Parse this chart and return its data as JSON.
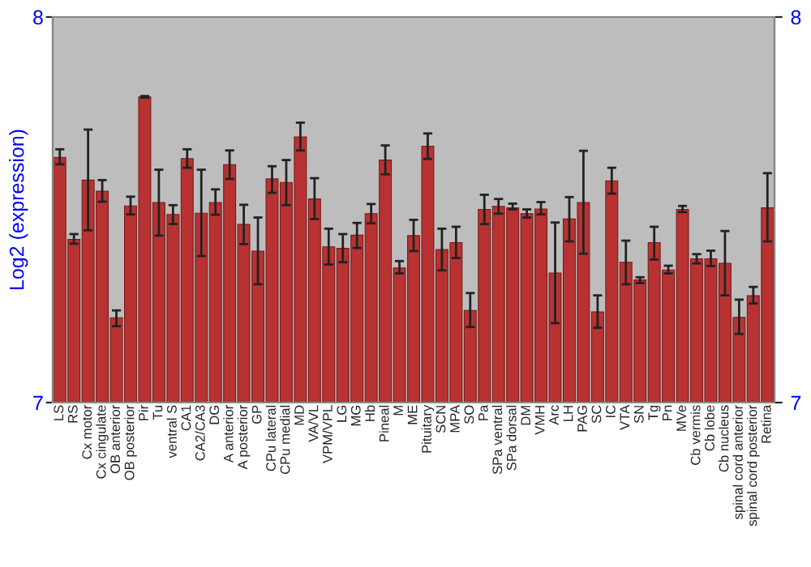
{
  "chart_data": {
    "type": "bar",
    "ylabel": "Log2 (expression)",
    "color": "#b83232",
    "categories": [
      "LS",
      "RS",
      "Cx motor",
      "Cx cingulate",
      "OB anterior",
      "OB posterior",
      "Pir",
      "Tu",
      "ventral S",
      "CA1",
      "CA2/CA3",
      "DG",
      "A anterior",
      "A posterior",
      "GP",
      "CPu lateral",
      "CPu medial",
      "MD",
      "VA/VL",
      "VPM/VPL",
      "LG",
      "MG",
      "Hb",
      "Pineal",
      "M",
      "ME",
      "Pituitary",
      "SCN",
      "MPA",
      "SO",
      "Pa",
      "SPa ventral",
      "SPa dorsal",
      "DM",
      "VMH",
      "Arc",
      "LH",
      "PAG",
      "SC",
      "IC",
      "VTA",
      "SN",
      "Tg",
      "Pn",
      "MVe",
      "Cb vermis",
      "Cb lobe",
      "Cb nucleus",
      "spinal cord anterior",
      "spinal cord posterior",
      "Retina"
    ],
    "values": [
      7.636,
      7.423,
      7.577,
      7.548,
      7.22,
      7.51,
      7.793,
      7.519,
      7.488,
      7.633,
      7.491,
      7.519,
      7.617,
      7.462,
      7.393,
      7.58,
      7.571,
      7.689,
      7.528,
      7.404,
      7.4,
      7.434,
      7.49,
      7.629,
      7.349,
      7.433,
      7.665,
      7.397,
      7.415,
      7.239,
      7.501,
      7.509,
      7.505,
      7.49,
      7.502,
      7.336,
      7.476,
      7.519,
      7.235,
      7.575,
      7.364,
      7.318,
      7.415,
      7.344,
      7.501,
      7.373,
      7.373,
      7.361,
      7.221,
      7.277,
      7.505
    ],
    "errors": [
      [
        7.618,
        7.657
      ],
      [
        7.412,
        7.437
      ],
      [
        7.447,
        7.708
      ],
      [
        7.521,
        7.577
      ],
      [
        7.198,
        7.239
      ],
      [
        7.488,
        7.534
      ],
      [
        7.791,
        7.795
      ],
      [
        7.433,
        7.604
      ],
      [
        7.463,
        7.512
      ],
      [
        7.609,
        7.657
      ],
      [
        7.38,
        7.604
      ],
      [
        7.487,
        7.553
      ],
      [
        7.58,
        7.654
      ],
      [
        7.411,
        7.513
      ],
      [
        7.307,
        7.48
      ],
      [
        7.544,
        7.613
      ],
      [
        7.512,
        7.629
      ],
      [
        7.654,
        7.726
      ],
      [
        7.476,
        7.582
      ],
      [
        7.358,
        7.451
      ],
      [
        7.364,
        7.437
      ],
      [
        7.401,
        7.466
      ],
      [
        7.465,
        7.515
      ],
      [
        7.592,
        7.667
      ],
      [
        7.335,
        7.367
      ],
      [
        7.393,
        7.474
      ],
      [
        7.632,
        7.698
      ],
      [
        7.343,
        7.451
      ],
      [
        7.375,
        7.456
      ],
      [
        7.196,
        7.284
      ],
      [
        7.463,
        7.539
      ],
      [
        7.49,
        7.528
      ],
      [
        7.501,
        7.516
      ],
      [
        7.48,
        7.501
      ],
      [
        7.488,
        7.52
      ],
      [
        7.206,
        7.467
      ],
      [
        7.418,
        7.533
      ],
      [
        7.386,
        7.653
      ],
      [
        7.194,
        7.278
      ],
      [
        7.542,
        7.609
      ],
      [
        7.307,
        7.42
      ],
      [
        7.31,
        7.325
      ],
      [
        7.371,
        7.456
      ],
      [
        7.335,
        7.355
      ],
      [
        7.494,
        7.51
      ],
      [
        7.361,
        7.385
      ],
      [
        7.354,
        7.394
      ],
      [
        7.278,
        7.445
      ],
      [
        7.178,
        7.267
      ],
      [
        7.257,
        7.3
      ],
      [
        7.418,
        7.595
      ]
    ],
    "ylim": [
      7,
      8
    ],
    "yticks": [
      7,
      8
    ],
    "y2lim": [
      7,
      8
    ],
    "y2ticks": [
      7,
      8
    ],
    "grid": false,
    "legend": false
  }
}
